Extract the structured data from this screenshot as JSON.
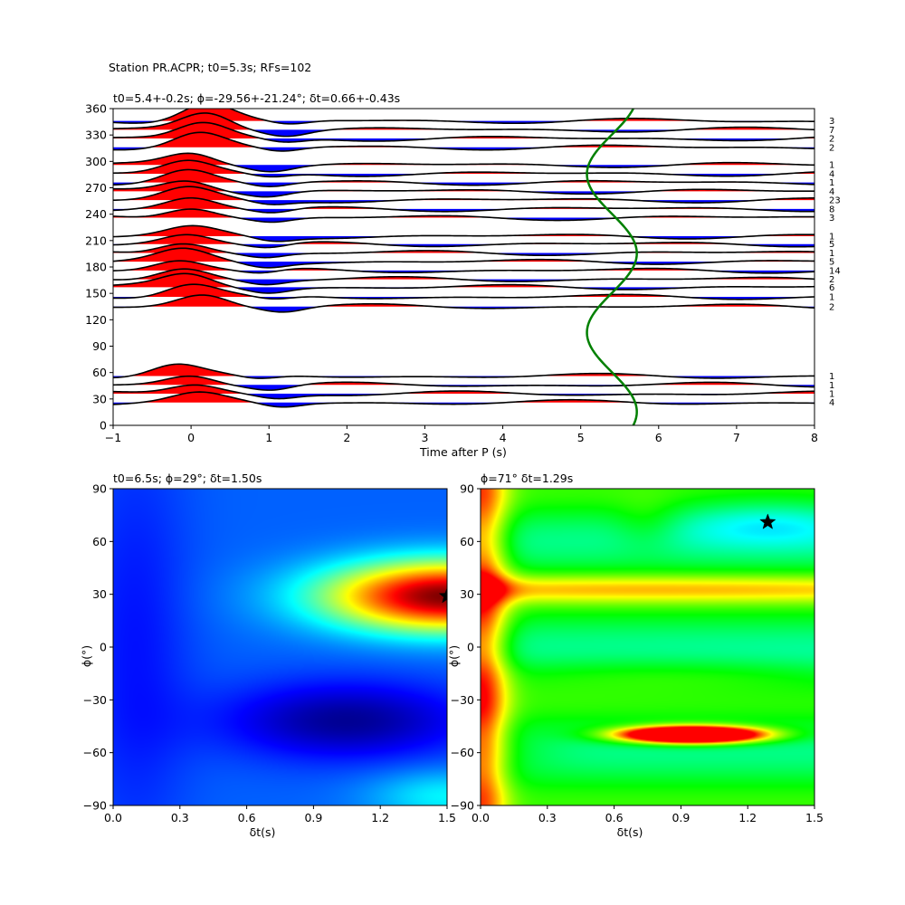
{
  "suptitle": "Station PR.ACPR; t0=5.3s; RFs=102",
  "colors": {
    "positive": "#ff0000",
    "negative": "#0000ff",
    "curve": "#008000",
    "trace": "#000000"
  },
  "chart_data": [
    {
      "type": "line",
      "title": "t0=5.4+-0.2s; ϕ=-29.56+-21.24°; δt=0.66+-0.43s",
      "xlabel": "Time after P (s)",
      "ylabel": "",
      "xlim": [
        -1,
        8
      ],
      "ylim": [
        0,
        360
      ],
      "xticks": [
        "−1",
        "0",
        "1",
        "2",
        "3",
        "4",
        "5",
        "6",
        "7",
        "8"
      ],
      "yticks": [
        "0",
        "30",
        "60",
        "90",
        "120",
        "150",
        "180",
        "210",
        "240",
        "270",
        "300",
        "330",
        "360"
      ],
      "traces": [
        {
          "baz": 26,
          "count": "4",
          "peak": 0.9,
          "pt": 0.1
        },
        {
          "baz": 36,
          "count": "1",
          "peak": 1.0,
          "pt": 0.05
        },
        {
          "baz": 46,
          "count": "1",
          "peak": 1.1,
          "pt": 0.0
        },
        {
          "baz": 56,
          "count": "1",
          "peak": 1.3,
          "pt": -0.2
        },
        {
          "baz": 135,
          "count": "2",
          "peak": 1.35,
          "pt": 0.15
        },
        {
          "baz": 146,
          "count": "1",
          "peak": 1.4,
          "pt": 0.0
        },
        {
          "baz": 157,
          "count": "6",
          "peak": 1.35,
          "pt": -0.05
        },
        {
          "baz": 166,
          "count": "2",
          "peak": 1.25,
          "pt": -0.1
        },
        {
          "baz": 176,
          "count": "14",
          "peak": 1.2,
          "pt": -0.15
        },
        {
          "baz": 186,
          "count": "5",
          "peak": 1.2,
          "pt": -0.1
        },
        {
          "baz": 196,
          "count": "1",
          "peak": 1.2,
          "pt": -0.1
        },
        {
          "baz": 206,
          "count": "5",
          "peak": 1.1,
          "pt": -0.05
        },
        {
          "baz": 215,
          "count": "1",
          "peak": 0.9,
          "pt": 0.0
        },
        {
          "baz": 236,
          "count": "3",
          "peak": 1.2,
          "pt": 0.0
        },
        {
          "baz": 246,
          "count": "8",
          "peak": 1.2,
          "pt": 0.0
        },
        {
          "baz": 256,
          "count": "23",
          "peak": 1.3,
          "pt": -0.05
        },
        {
          "baz": 266,
          "count": "4",
          "peak": 1.3,
          "pt": -0.05
        },
        {
          "baz": 276,
          "count": "1",
          "peak": 1.4,
          "pt": -0.05
        },
        {
          "baz": 286,
          "count": "4",
          "peak": 1.4,
          "pt": -0.05
        },
        {
          "baz": 296,
          "count": "1",
          "peak": 1.3,
          "pt": 0.0
        },
        {
          "baz": 316,
          "count": "2",
          "peak": 1.6,
          "pt": 0.1
        },
        {
          "baz": 326,
          "count": "2",
          "peak": 1.7,
          "pt": 0.15
        },
        {
          "baz": 336,
          "count": "7",
          "peak": 1.9,
          "pt": 0.2
        },
        {
          "baz": 346,
          "count": "3",
          "peak": 2.0,
          "pt": 0.2
        }
      ],
      "t0_curve": {
        "t0": 5.4,
        "amplitude": 0.32,
        "baz_phase": -29.56
      }
    },
    {
      "type": "heatmap",
      "title": "t0=6.5s; ϕ=29°; δt=1.50s",
      "xlabel": "δt(s)",
      "ylabel": "ϕ(°)",
      "xlim": [
        0.0,
        1.5
      ],
      "ylim": [
        -90,
        90
      ],
      "xticks": [
        "0.0",
        "0.3",
        "0.6",
        "0.9",
        "1.2",
        "1.5"
      ],
      "yticks": [
        "−90",
        "−60",
        "−30",
        "0",
        "30",
        "60",
        "90"
      ],
      "colormap": "jet",
      "best": {
        "dt": 1.5,
        "phi": 29
      }
    },
    {
      "type": "heatmap",
      "title": "ϕ=71° δt=1.29s",
      "xlabel": "δt(s)",
      "ylabel": "ϕ(°)",
      "xlim": [
        0.0,
        1.5
      ],
      "ylim": [
        -90,
        90
      ],
      "xticks": [
        "0.0",
        "0.3",
        "0.6",
        "0.9",
        "1.2",
        "1.5"
      ],
      "yticks": [
        "−90",
        "−60",
        "−30",
        "0",
        "30",
        "60",
        "90"
      ],
      "colormap": "hsv",
      "best": {
        "dt": 1.29,
        "phi": 71
      }
    }
  ]
}
